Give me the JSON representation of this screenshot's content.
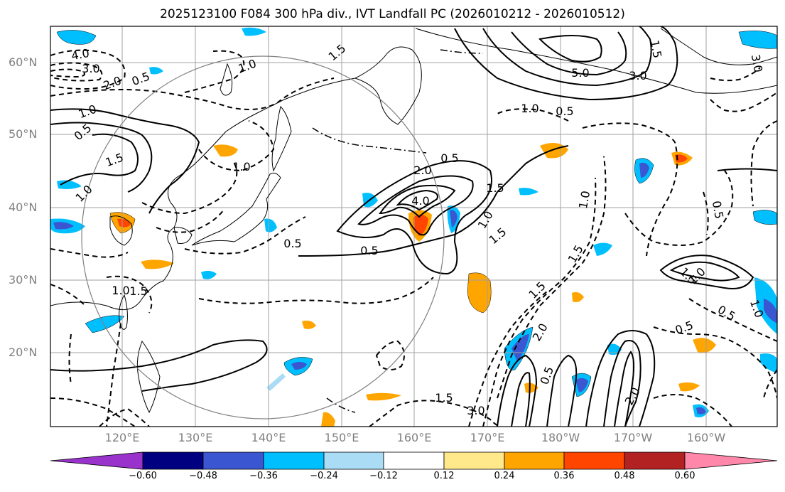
{
  "title": "2025123100 F084 300 hPa div., IVT Landfall PC (2026010212 - 2026010512)",
  "lat_labels": [
    "60°N",
    "50°N",
    "40°N",
    "30°N",
    "20°N"
  ],
  "lon_labels": [
    "120°E",
    "130°E",
    "140°E",
    "150°E",
    "160°E",
    "170°E",
    "180°W",
    "170°W",
    "160°W"
  ],
  "contour_labels": [
    "4.0",
    "3.0",
    "2.0",
    "0.5",
    "1.0",
    "1.5",
    "1.0",
    "0.5",
    "1.5",
    "1.0",
    "0.5",
    "1.0",
    "2.0",
    "4.0",
    "1.5",
    "0.5",
    "1.5",
    "1.0",
    "0.5",
    "1.5",
    "1.0",
    "5.0",
    "3.0",
    "1.0",
    "0.5",
    "1.5",
    "0.5",
    "1.0",
    "1.5",
    "0.5",
    "0.5",
    "1.0",
    "1.5",
    "2.0",
    "0.5",
    "1.5",
    "1.0",
    "3.0",
    "2.0",
    "1.5",
    "3.0"
  ],
  "colorbar": {
    "ticks": [
      "−0.60",
      "−0.48",
      "−0.36",
      "−0.24",
      "−0.12",
      "0.12",
      "0.24",
      "0.36",
      "0.48",
      "0.60"
    ],
    "colors": [
      "#9933cc",
      "#000080",
      "#3a56d0",
      "#00bfff",
      "#aadcf5",
      "#ffffff",
      "#ffe98a",
      "#ffa500",
      "#ff4500",
      "#b22222",
      "#ff88aa"
    ]
  },
  "colors": {
    "grid": "#a0a0a0",
    "coast": "#000000",
    "contour": "#000000",
    "circle": "#808080",
    "neg_light": "#aadcf5",
    "neg_mid": "#00bfff",
    "neg_strong": "#3a56d0",
    "pos_light": "#ffe98a",
    "pos_mid": "#ffa500",
    "pos_strong": "#ff4500"
  }
}
